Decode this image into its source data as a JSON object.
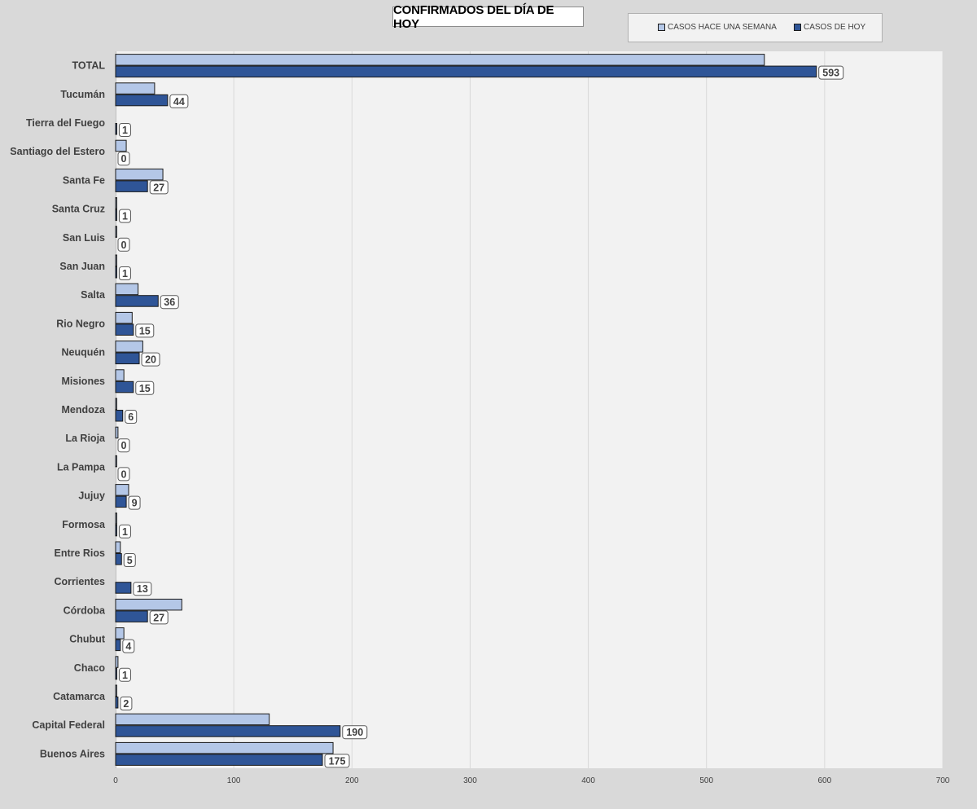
{
  "chart_data": {
    "type": "bar",
    "orientation": "horizontal",
    "title": "CONFIRMADOS DEL DÍA DE HOY",
    "categories": [
      "TOTAL",
      "Tucumán",
      "Tierra del Fuego",
      "Santiago del Estero",
      "Santa Fe",
      "Santa Cruz",
      "San Luis",
      "San Juan",
      "Salta",
      "Rio Negro",
      "Neuquén",
      "Misiones",
      "Mendoza",
      "La Rioja",
      "La Pampa",
      "Jujuy",
      "Formosa",
      "Entre Rios",
      "Corrientes",
      "Córdoba",
      "Chubut",
      "Chaco",
      "Catamarca",
      "Capital Federal",
      "Buenos Aires"
    ],
    "series": [
      {
        "name": "CASOS HACE UNA SEMANA",
        "color": "#b4c7e7",
        "values": [
          549,
          33,
          0,
          9,
          40,
          1,
          1,
          1,
          19,
          14,
          23,
          7,
          1,
          2,
          1,
          11,
          1,
          4,
          0,
          56,
          7,
          2,
          1,
          130,
          184
        ]
      },
      {
        "name": "CASOS DE HOY",
        "color": "#2f5597",
        "values": [
          593,
          44,
          1,
          0,
          27,
          1,
          0,
          1,
          36,
          15,
          20,
          15,
          6,
          0,
          0,
          9,
          1,
          5,
          13,
          27,
          4,
          1,
          2,
          190,
          175
        ]
      }
    ],
    "data_labels_series": "CASOS DE HOY",
    "xlim": [
      0,
      700
    ],
    "xticks": [
      0,
      100,
      200,
      300,
      400,
      500,
      600,
      700
    ],
    "grid": true,
    "legend_position": "top-right",
    "xlabel": "",
    "ylabel": ""
  }
}
